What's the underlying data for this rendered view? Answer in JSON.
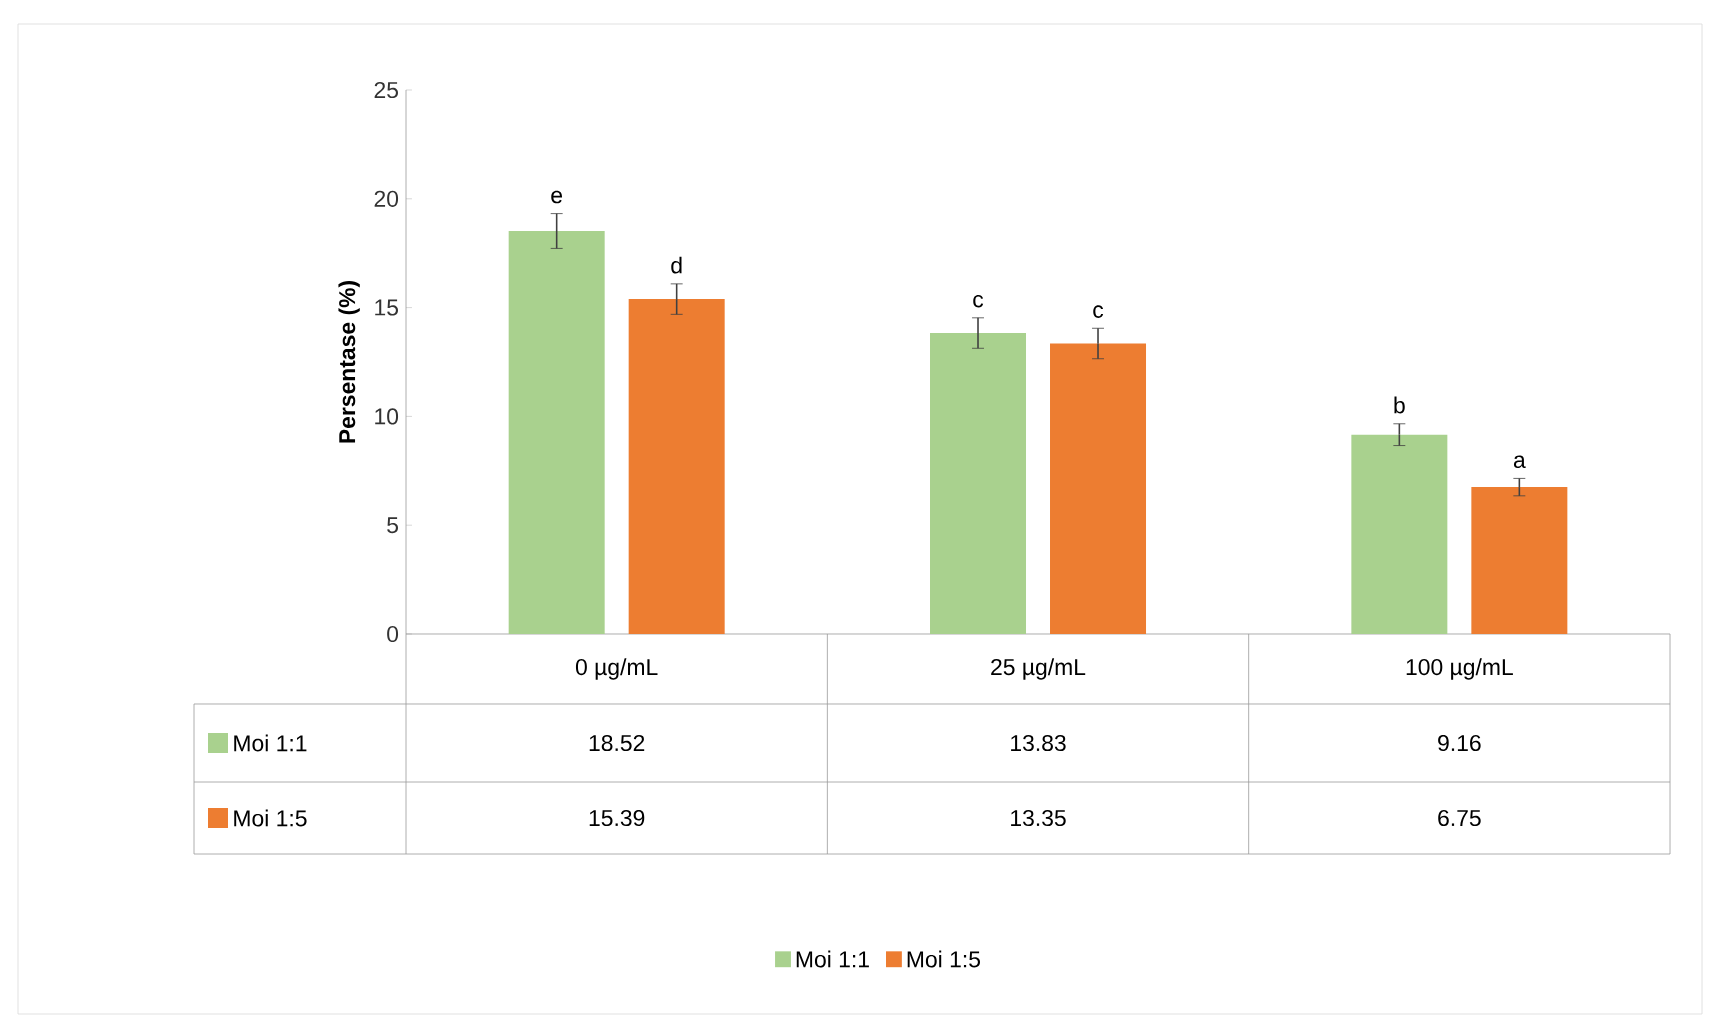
{
  "chart_data": {
    "type": "bar",
    "ylabel": "Persentase (%)",
    "categories": [
      "0 µg/mL",
      "25 µg/mL",
      "100 µg/mL"
    ],
    "series": [
      {
        "name": "Moi 1:1",
        "color": "#a9d18e",
        "values": [
          18.52,
          13.83,
          9.16
        ],
        "errors": [
          0.8,
          0.7,
          0.5
        ]
      },
      {
        "name": "Moi 1:5",
        "color": "#ed7d31",
        "values": [
          15.39,
          13.35,
          6.75
        ],
        "errors": [
          0.7,
          0.7,
          0.4
        ]
      }
    ],
    "ylim": [
      0,
      25
    ],
    "yticks": [
      0,
      5,
      10,
      15,
      20,
      25
    ],
    "grid": false,
    "legend": "bottom",
    "data_labels": true,
    "annotations": [
      "e",
      "d",
      "c",
      "c",
      "b",
      "a"
    ]
  }
}
